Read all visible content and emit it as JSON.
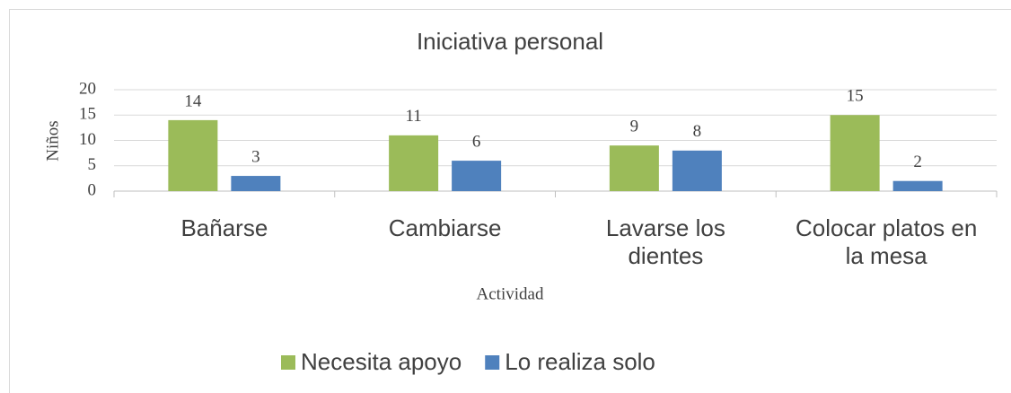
{
  "chart_data": {
    "type": "bar",
    "title": "Iniciativa personal",
    "x_label": "Actividad",
    "y_label": "Niños",
    "categories": [
      "Bañarse",
      "Cambiarse",
      "Lavarse los dientes",
      "Colocar platos en la mesa"
    ],
    "series": [
      {
        "name": "Necesita apoyo",
        "color": "#9bbb59",
        "values": [
          14,
          11,
          9,
          15
        ]
      },
      {
        "name": "Lo realiza solo",
        "color": "#4f81bd",
        "values": [
          3,
          6,
          8,
          2
        ]
      }
    ],
    "ylim": [
      0,
      20
    ],
    "yticks": [
      0,
      5,
      10,
      15,
      20
    ],
    "grid": true,
    "legend": "bottom"
  }
}
